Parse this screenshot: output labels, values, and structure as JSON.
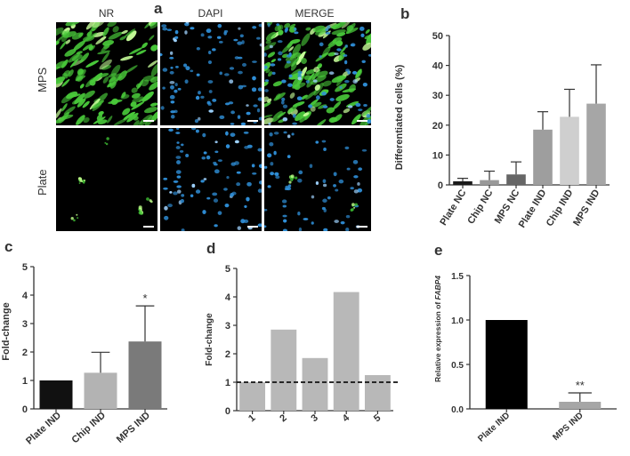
{
  "panels": {
    "a": {
      "letter": "a",
      "column_headers": [
        "NR",
        "DAPI",
        "MERGE"
      ],
      "row_labels": [
        "MPS",
        "Plate"
      ]
    },
    "b": {
      "letter": "b",
      "chart_data": {
        "type": "bar",
        "ylabel": "Differentiated cells (%)",
        "ylim": [
          0,
          50
        ],
        "yticks": [
          "0",
          "10",
          "20",
          "30",
          "40",
          "50"
        ],
        "categories": [
          "Plate NC",
          "Chip NC",
          "MPS NC",
          "Plate IND",
          "Chip IND",
          "MPS IND"
        ],
        "values": [
          1.2,
          1.6,
          3.5,
          18.5,
          22.8,
          27.2
        ],
        "errors": [
          1.0,
          3.0,
          4.2,
          6.0,
          9.2,
          13.0
        ],
        "colors": [
          "#1a1a1a",
          "#999999",
          "#666666",
          "#9e9e9e",
          "#cfcfcf",
          "#a6a6a6"
        ]
      }
    },
    "c": {
      "letter": "c",
      "chart_data": {
        "type": "bar",
        "ylabel": "Fold-change",
        "ylim": [
          0,
          5
        ],
        "yticks": [
          "0",
          "1",
          "2",
          "3",
          "4",
          "5"
        ],
        "categories": [
          "Plate IND",
          "Chip IND",
          "MPS IND"
        ],
        "values": [
          1.0,
          1.27,
          2.37
        ],
        "errors": [
          0,
          0.72,
          1.25
        ],
        "significance": [
          "",
          "",
          "*"
        ],
        "colors": [
          "#111111",
          "#b3b3b3",
          "#7a7a7a"
        ]
      }
    },
    "d": {
      "letter": "d",
      "chart_data": {
        "type": "bar",
        "ylabel": "Fold-change",
        "ylim": [
          0,
          5
        ],
        "yticks": [
          "0",
          "1",
          "2",
          "3",
          "4",
          "5"
        ],
        "categories": [
          "1",
          "2",
          "3",
          "4",
          "5"
        ],
        "values": [
          1.0,
          2.85,
          1.85,
          4.17,
          1.25
        ],
        "reference_line": 1.0,
        "colors": [
          "#b8b8b8"
        ]
      }
    },
    "e": {
      "letter": "e",
      "chart_data": {
        "type": "bar",
        "ylabel_prefix": "Relative expression of ",
        "ylabel_gene": "FABP4",
        "ylim": [
          0,
          1.5
        ],
        "yticks": [
          "0.0",
          "0.5",
          "1.0",
          "1.5"
        ],
        "categories": [
          "Plate IND",
          "MPS IND"
        ],
        "values": [
          1.0,
          0.08
        ],
        "errors": [
          0,
          0.1
        ],
        "significance": [
          "",
          "**"
        ],
        "colors": [
          "#000000",
          "#a6a6a6"
        ]
      }
    }
  }
}
